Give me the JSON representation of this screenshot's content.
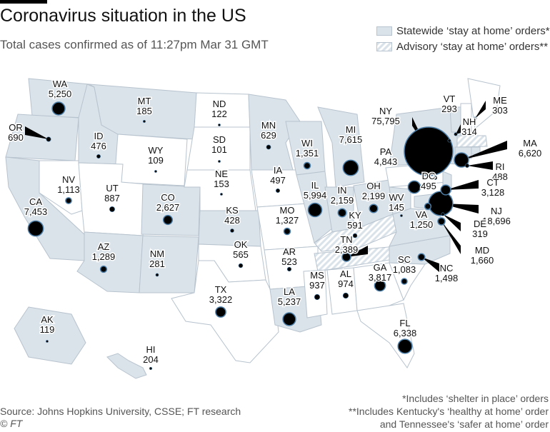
{
  "title": "Coronavirus situation in the US",
  "subtitle": "Total cases confirmed as of 11:27pm Mar 31 GMT",
  "legend": {
    "statewide": "Statewide ‘stay at home’ orders*",
    "advisory": "Advisory ‘stay at home’ orders**"
  },
  "colors": {
    "statewide": "#dbe3ea",
    "none": "#ffffff",
    "border": "#b7c3ce",
    "bubble": "#000000",
    "bubble_ring": "#4d7fa8"
  },
  "footer": {
    "source": "Source: Johns Hopkins University, CSSE; FT research",
    "copyright": "© FT",
    "note1": "*Includes ‘shelter in place’ orders",
    "note2": "**Includes Kentucky's ‘healthy at home’ order",
    "note3": "and Tennessee's ‘safer at home’ order"
  },
  "states": [
    {
      "code": "WA",
      "cases": 5250,
      "order": "statewide"
    },
    {
      "code": "OR",
      "cases": 690,
      "order": "statewide"
    },
    {
      "code": "CA",
      "cases": 7453,
      "order": "statewide"
    },
    {
      "code": "NV",
      "cases": 1113,
      "order": "none"
    },
    {
      "code": "ID",
      "cases": 476,
      "order": "statewide"
    },
    {
      "code": "MT",
      "cases": 185,
      "order": "statewide"
    },
    {
      "code": "WY",
      "cases": 109,
      "order": "none"
    },
    {
      "code": "UT",
      "cases": 887,
      "order": "none"
    },
    {
      "code": "AZ",
      "cases": 1289,
      "order": "statewide"
    },
    {
      "code": "CO",
      "cases": 2627,
      "order": "statewide"
    },
    {
      "code": "NM",
      "cases": 281,
      "order": "statewide"
    },
    {
      "code": "ND",
      "cases": 122,
      "order": "none"
    },
    {
      "code": "SD",
      "cases": 101,
      "order": "none"
    },
    {
      "code": "NE",
      "cases": 153,
      "order": "none"
    },
    {
      "code": "KS",
      "cases": 428,
      "order": "statewide"
    },
    {
      "code": "OK",
      "cases": 565,
      "order": "none"
    },
    {
      "code": "TX",
      "cases": 3322,
      "order": "none"
    },
    {
      "code": "MN",
      "cases": 629,
      "order": "statewide"
    },
    {
      "code": "IA",
      "cases": 497,
      "order": "none"
    },
    {
      "code": "MO",
      "cases": 1327,
      "order": "none"
    },
    {
      "code": "AR",
      "cases": 523,
      "order": "none"
    },
    {
      "code": "LA",
      "cases": 5237,
      "order": "statewide"
    },
    {
      "code": "WI",
      "cases": 1351,
      "order": "statewide"
    },
    {
      "code": "IL",
      "cases": 5994,
      "order": "statewide"
    },
    {
      "code": "MI",
      "cases": 7615,
      "order": "statewide"
    },
    {
      "code": "IN",
      "cases": 2159,
      "order": "statewide"
    },
    {
      "code": "KY",
      "cases": 591,
      "order": "advisory"
    },
    {
      "code": "TN",
      "cases": 2389,
      "order": "advisory"
    },
    {
      "code": "MS",
      "cases": 937,
      "order": "none"
    },
    {
      "code": "AL",
      "cases": 974,
      "order": "none"
    },
    {
      "code": "GA",
      "cases": 3817,
      "order": "none"
    },
    {
      "code": "FL",
      "cases": 6338,
      "order": "none"
    },
    {
      "code": "SC",
      "cases": 1083,
      "order": "none"
    },
    {
      "code": "NC",
      "cases": 1498,
      "order": "statewide"
    },
    {
      "code": "VA",
      "cases": 1250,
      "order": "statewide"
    },
    {
      "code": "WV",
      "cases": 145,
      "order": "statewide"
    },
    {
      "code": "OH",
      "cases": 2199,
      "order": "statewide"
    },
    {
      "code": "PA",
      "cases": 4843,
      "order": "none"
    },
    {
      "code": "NY",
      "cases": 75795,
      "order": "statewide"
    },
    {
      "code": "VT",
      "cases": 293,
      "order": "statewide"
    },
    {
      "code": "NH",
      "cases": 314,
      "order": "none"
    },
    {
      "code": "ME",
      "cases": 303,
      "order": "none"
    },
    {
      "code": "MA",
      "cases": 6620,
      "order": "advisory"
    },
    {
      "code": "RI",
      "cases": 488,
      "order": "statewide"
    },
    {
      "code": "CT",
      "cases": 3128,
      "order": "statewide"
    },
    {
      "code": "NJ",
      "cases": 18696,
      "order": "statewide"
    },
    {
      "code": "DE",
      "cases": 319,
      "order": "statewide"
    },
    {
      "code": "MD",
      "cases": 1660,
      "order": "statewide"
    },
    {
      "code": "DC",
      "cases": 495,
      "order": "statewide"
    },
    {
      "code": "AK",
      "cases": 119,
      "order": "statewide"
    },
    {
      "code": "HI",
      "cases": 204,
      "order": "statewide"
    }
  ]
}
